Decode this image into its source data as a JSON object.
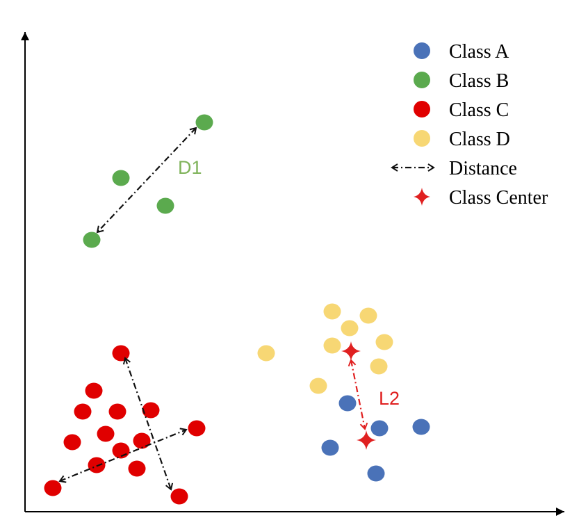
{
  "colors": {
    "class_a": "#4A72B8",
    "class_b": "#5BAA4E",
    "class_c": "#E00000",
    "class_d": "#F7D774",
    "distance_line": "#111111",
    "center_line": "#E02020",
    "label_d1": "#7FB35A",
    "label_l2": "#E02020"
  },
  "legend": {
    "items": [
      {
        "label": "Class A",
        "marker": "dot",
        "color": "#4A72B8"
      },
      {
        "label": "Class B",
        "marker": "dot",
        "color": "#5BAA4E"
      },
      {
        "label": "Class C",
        "marker": "dot",
        "color": "#E00000"
      },
      {
        "label": "Class D",
        "marker": "dot",
        "color": "#F7D774"
      },
      {
        "label": "Distance",
        "marker": "double-arrow-dashdot",
        "color": "#111111"
      },
      {
        "label": "Class Center",
        "marker": "four-point-star",
        "color": "#E02020"
      }
    ]
  },
  "annotations": {
    "d1_label": "D1",
    "l2_label": "L2"
  }
}
